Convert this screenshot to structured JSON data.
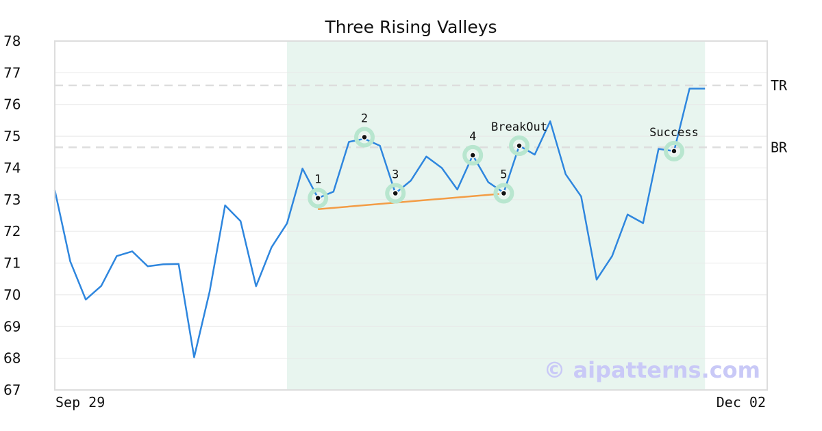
{
  "chart_data": {
    "type": "line",
    "title": "Three Rising Valleys",
    "watermark": "© aipatterns.com",
    "ylim": [
      67,
      78
    ],
    "yticks": [
      "67",
      "68",
      "69",
      "70",
      "71",
      "72",
      "73",
      "74",
      "75",
      "76",
      "77",
      "78"
    ],
    "x_range": [
      "Sep 29",
      "Dec 02"
    ],
    "x_tick_labels": [
      "Sep 29",
      "Dec 02"
    ],
    "grid": true,
    "colors": {
      "series": "#2e86de",
      "highlight": "#e8f5ef",
      "marker_ring": "#b8e6cf",
      "support_line": "#f39c45",
      "reference_line": "#dddddd",
      "grid": "#e8e8e8",
      "frame": "#dddddd"
    },
    "series": [
      {
        "values": [
          73.3,
          71.05,
          69.85,
          70.28,
          71.22,
          71.37,
          70.9,
          70.96,
          70.97,
          68.03,
          70.1,
          72.82,
          72.32,
          70.27,
          71.5,
          72.25,
          73.98,
          73.05,
          73.25,
          74.82,
          74.92,
          74.7,
          73.2,
          73.6,
          74.36,
          74.0,
          73.32,
          74.4,
          73.55,
          73.22,
          74.7,
          74.42,
          75.47,
          73.8,
          73.1,
          70.48,
          71.22,
          72.53,
          72.26,
          74.6,
          74.53,
          76.5,
          76.5
        ]
      }
    ],
    "highlight_range": [
      15,
      42
    ],
    "reference_lines": [
      {
        "label": "TR",
        "value": 76.6
      },
      {
        "label": "BR",
        "value": 74.65
      }
    ],
    "support_line": {
      "from": [
        17,
        72.7
      ],
      "to": [
        28.7,
        73.18
      ]
    },
    "annotations": [
      {
        "label": "1",
        "index": 17,
        "value": 73.05
      },
      {
        "label": "2",
        "index": 20,
        "value": 74.97
      },
      {
        "label": "3",
        "index": 22,
        "value": 73.2
      },
      {
        "label": "4",
        "index": 27,
        "value": 74.4
      },
      {
        "label": "5",
        "index": 29,
        "value": 73.2
      },
      {
        "label": "BreakOut",
        "index": 30,
        "value": 74.7
      },
      {
        "label": "Success",
        "index": 40,
        "value": 74.53
      }
    ]
  }
}
